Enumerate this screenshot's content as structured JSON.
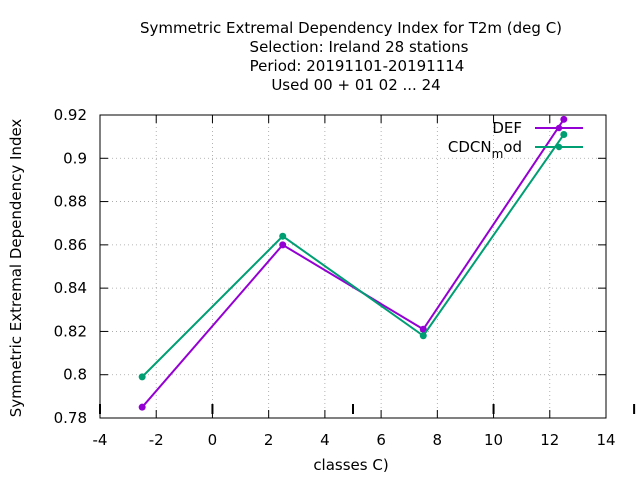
{
  "chart_data": {
    "type": "line",
    "title_lines": [
      "Symmetric Extremal Dependency Index  for T2m (deg C)",
      "Selection: Ireland     28 stations",
      "Period: 20191101-20191114",
      "Used  00 + 01 02 ... 24"
    ],
    "xlabel": "classes C)",
    "ylabel": "Symmetric Extremal Dependency Index",
    "xlim": [
      -4,
      14
    ],
    "ylim": [
      0.78,
      0.92
    ],
    "x_ticks": [
      "-4",
      "-2",
      "0",
      "2",
      "4",
      "6",
      "8",
      "10",
      "12",
      "14"
    ],
    "y_ticks": [
      "0.78",
      "0.8",
      "0.82",
      "0.84",
      "0.86",
      "0.88",
      "0.9",
      "0.92"
    ],
    "grid": true,
    "legend_position": "top-right",
    "series": [
      {
        "name": "DEF",
        "color": "#9400d3",
        "x": [
          -2.5,
          2.5,
          7.5,
          12.5
        ],
        "y": [
          0.785,
          0.86,
          0.821,
          0.918
        ]
      },
      {
        "name": "CDCN_mod",
        "legend_main": "CDCN",
        "legend_sub": "m",
        "legend_tail": "od",
        "color": "#009e73",
        "x": [
          -2.5,
          2.5,
          7.5,
          12.5
        ],
        "y": [
          0.799,
          0.864,
          0.818,
          0.911
        ]
      }
    ]
  }
}
